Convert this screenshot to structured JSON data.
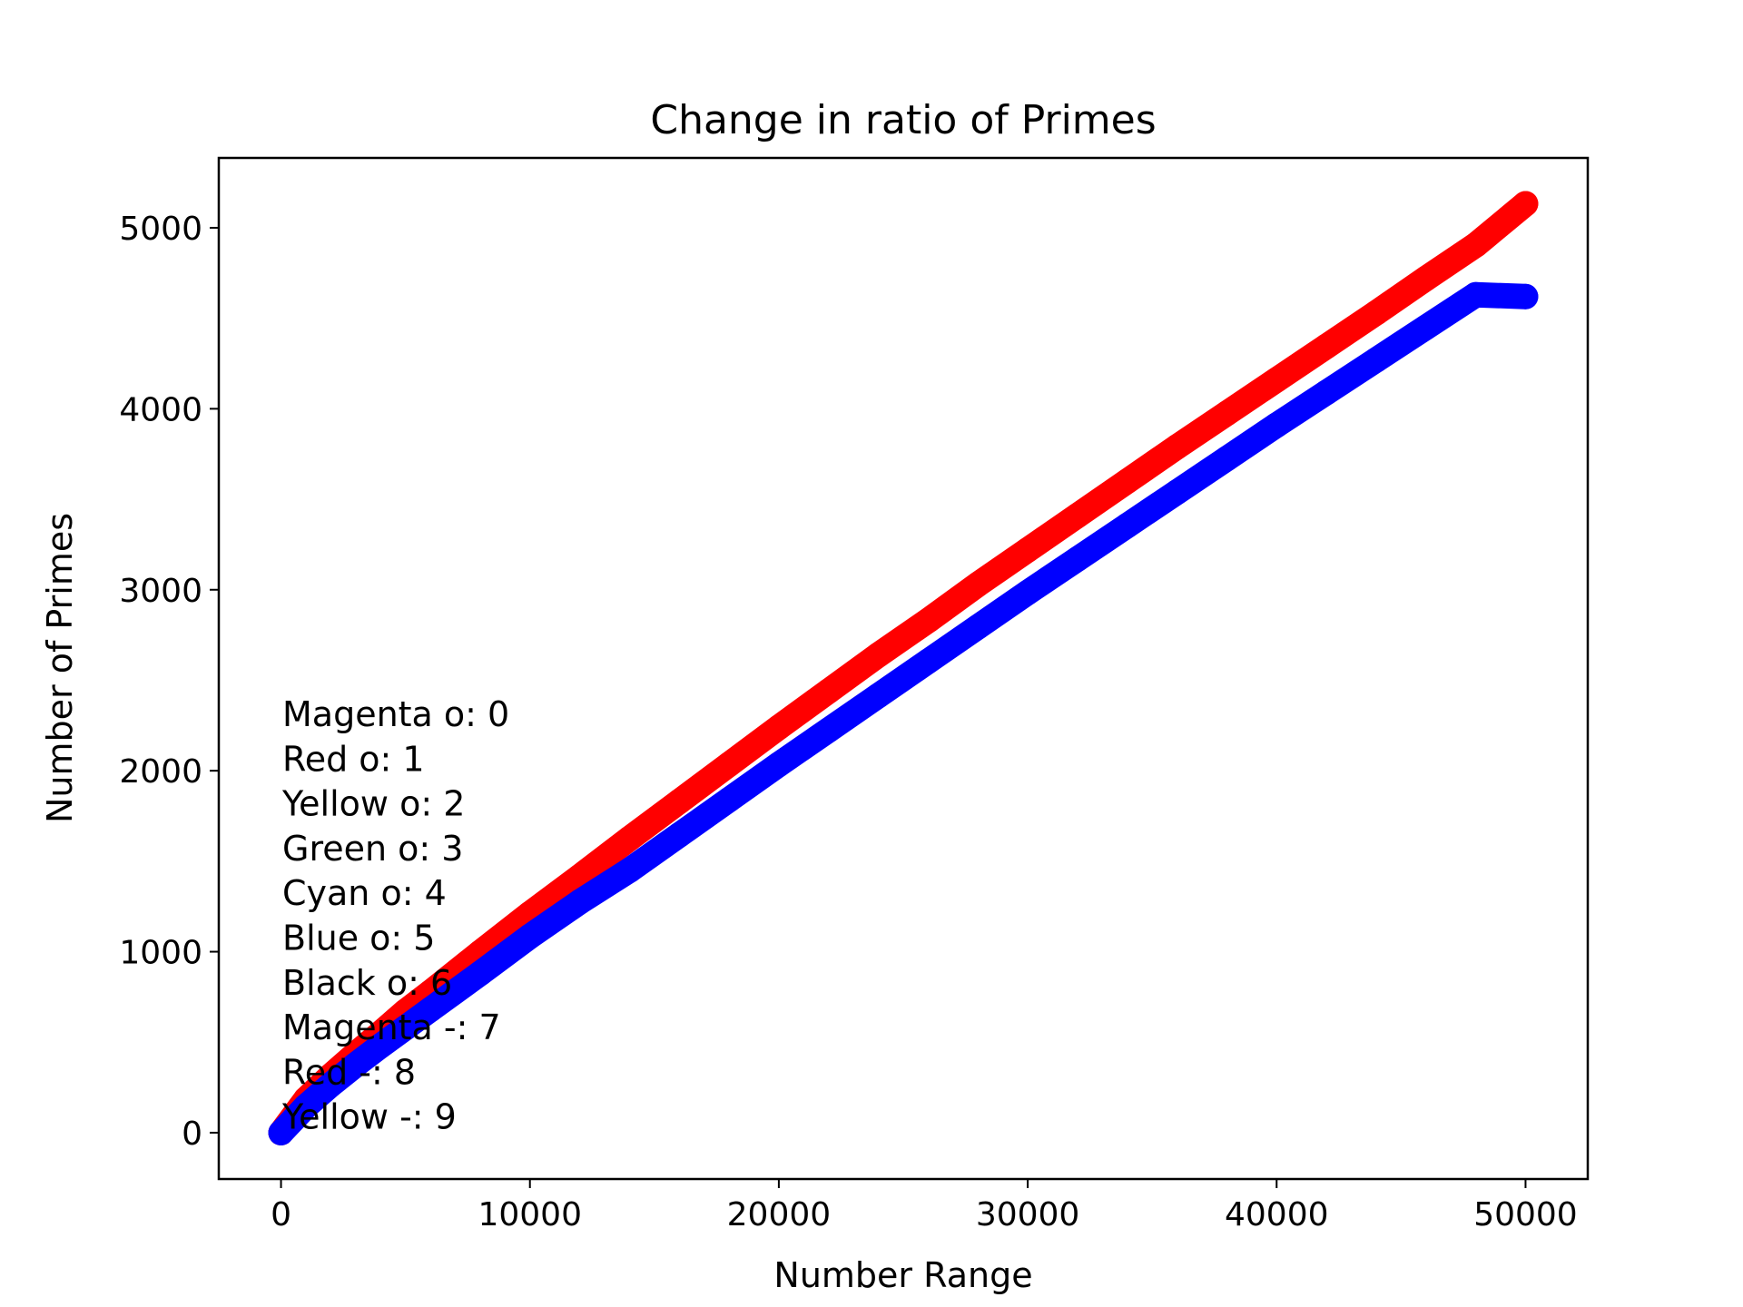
{
  "chart_data": {
    "type": "scatter",
    "title": "Change in ratio of Primes",
    "xlabel": "Number Range",
    "ylabel": "Number of Primes",
    "xlim": [
      -2500,
      52500
    ],
    "ylim": [
      -256,
      5386
    ],
    "xticks": [
      0,
      10000,
      20000,
      30000,
      40000,
      50000
    ],
    "yticks": [
      0,
      1000,
      2000,
      3000,
      4000,
      5000
    ],
    "grid": false,
    "legend": "none",
    "series": [
      {
        "color": "#ff0000",
        "marker": "o",
        "x": [
          0,
          1000,
          2000,
          3000,
          4000,
          5000,
          6000,
          8000,
          10000,
          12000,
          14000,
          16000,
          18000,
          20000,
          22000,
          24000,
          26000,
          28000,
          30000,
          32000,
          34000,
          36000,
          38000,
          40000,
          42000,
          44000,
          46000,
          48000,
          50000
        ],
        "values": [
          0,
          185,
          315,
          435,
          550,
          670,
          775,
          995,
          1210,
          1415,
          1625,
          1830,
          2035,
          2240,
          2440,
          2640,
          2830,
          3030,
          3220,
          3410,
          3600,
          3790,
          3975,
          4160,
          4345,
          4530,
          4720,
          4905,
          5133
        ]
      },
      {
        "color": "#0000ff",
        "marker": "o",
        "x": [
          0,
          1000,
          2000,
          3000,
          4000,
          5000,
          6000,
          8000,
          10000,
          12000,
          14000,
          16000,
          18000,
          20000,
          22000,
          24000,
          26000,
          28000,
          30000,
          32000,
          34000,
          36000,
          38000,
          40000,
          42000,
          44000,
          46000,
          48000,
          50000
        ],
        "values": [
          0,
          145,
          265,
          375,
          480,
          580,
          680,
          880,
          1085,
          1275,
          1450,
          1645,
          1840,
          2035,
          2225,
          2415,
          2605,
          2795,
          2985,
          3170,
          3355,
          3540,
          3725,
          3910,
          4090,
          4270,
          4450,
          4630,
          4620
        ]
      }
    ],
    "annotations": [
      "Magenta o: 0",
      "Red o: 1",
      "Yellow o: 2",
      "Green o: 3",
      "Cyan o: 4",
      "Blue o: 5",
      "Black o: 6",
      "Magenta -: 7",
      "Red -: 8",
      "Yellow -: 9"
    ]
  }
}
